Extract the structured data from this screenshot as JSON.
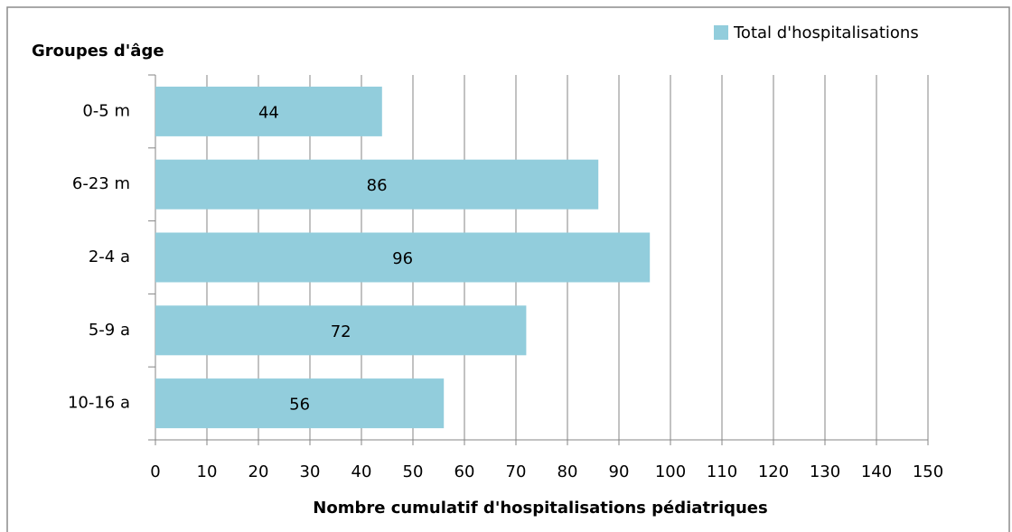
{
  "chart_data": {
    "type": "bar",
    "orientation": "horizontal",
    "y_label": "Groupes d'âge",
    "x_label": "Nombre cumulatif d'hospitalisations pédiatriques",
    "categories": [
      "0-5 m",
      "6-23 m",
      "2-4 a",
      "5-9 a",
      "10-16 a"
    ],
    "series": [
      {
        "name": "Total d'hospitalisations",
        "color": "#92cddc",
        "values": [
          44,
          86,
          96,
          72,
          56
        ]
      }
    ],
    "xlim": [
      0,
      150
    ],
    "xticks": [
      0,
      10,
      20,
      30,
      40,
      50,
      60,
      70,
      80,
      90,
      100,
      110,
      120,
      130,
      140,
      150
    ],
    "grid": true,
    "legend": "top-right"
  }
}
